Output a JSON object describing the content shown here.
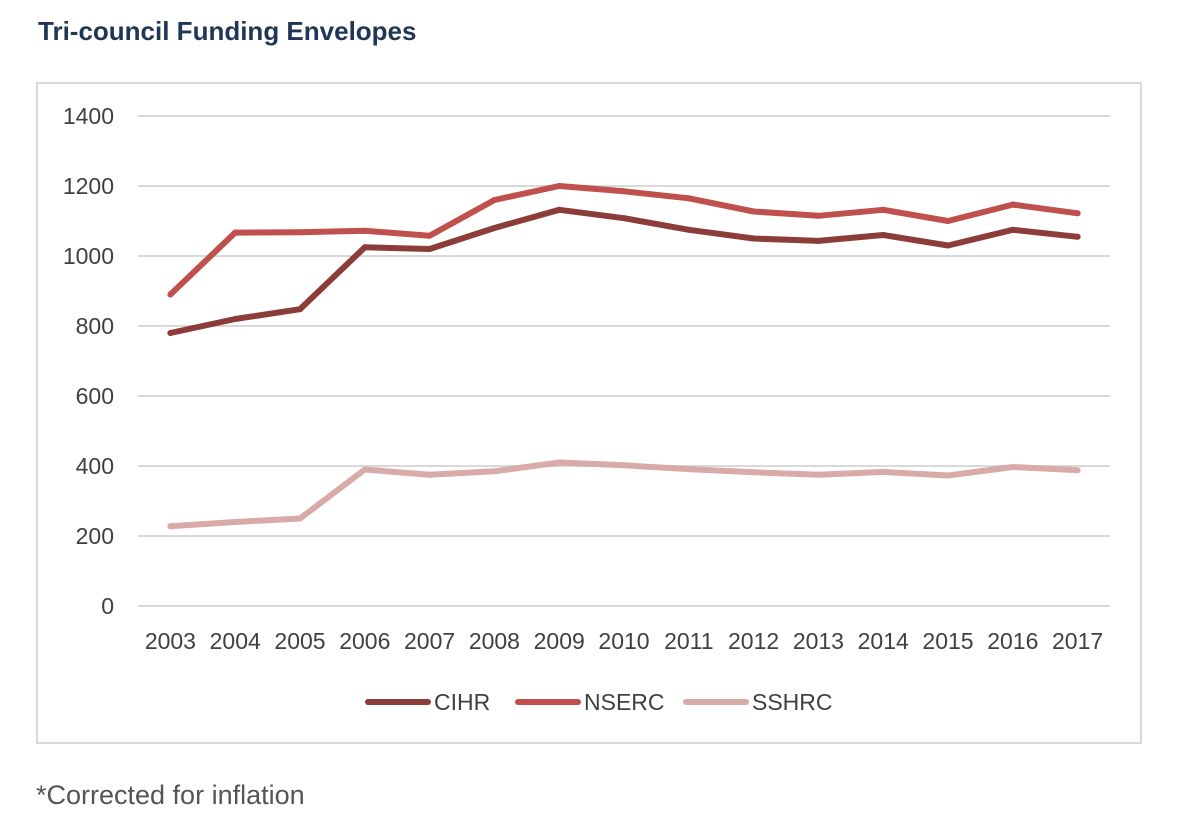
{
  "title": "Tri-council Funding Envelopes",
  "footnote": "*Corrected for inflation",
  "chart_data": {
    "type": "line",
    "title": "",
    "xlabel": "",
    "ylabel": "",
    "x": [
      "2003",
      "2004",
      "2005",
      "2006",
      "2007",
      "2008",
      "2009",
      "2010",
      "2011",
      "2012",
      "2013",
      "2014",
      "2015",
      "2016",
      "2017"
    ],
    "ylim": [
      0,
      1400
    ],
    "yticks": [
      0,
      200,
      400,
      600,
      800,
      1000,
      1200,
      1400
    ],
    "grid": true,
    "legend": "bottom",
    "series": [
      {
        "name": "CIHR",
        "color": "#8c3d39",
        "values": [
          780,
          820,
          848,
          1025,
          1020,
          1080,
          1132,
          1108,
          1075,
          1050,
          1043,
          1060,
          1030,
          1075,
          1055
        ]
      },
      {
        "name": "NSERC",
        "color": "#c0504d",
        "values": [
          890,
          1067,
          1068,
          1072,
          1058,
          1160,
          1200,
          1185,
          1165,
          1127,
          1115,
          1132,
          1100,
          1147,
          1122
        ]
      },
      {
        "name": "SSHRC",
        "color": "#d8aaa8",
        "values": [
          228,
          240,
          250,
          390,
          375,
          385,
          410,
          402,
          391,
          382,
          375,
          383,
          373,
          397,
          388
        ]
      }
    ]
  }
}
